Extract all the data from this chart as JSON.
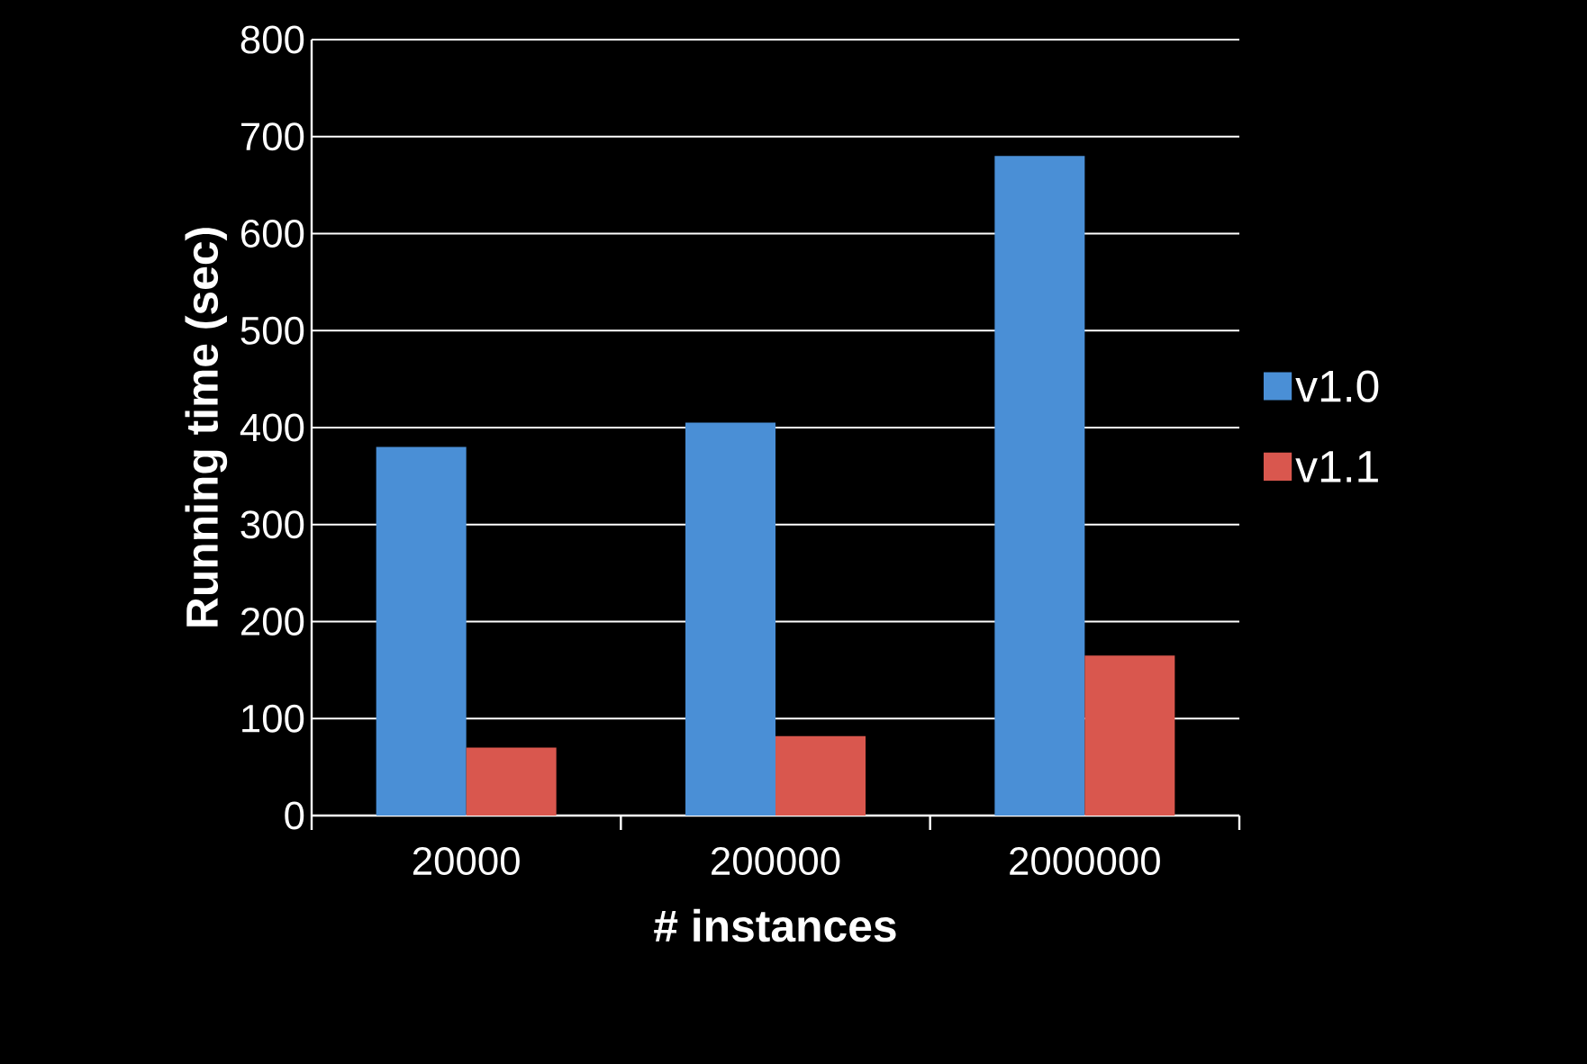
{
  "chart_data": {
    "type": "bar",
    "xlabel": "# instances",
    "ylabel": "Running time (sec)",
    "categories": [
      "20000",
      "200000",
      "2000000"
    ],
    "series": [
      {
        "name": "v1.0",
        "color": "#4a8fd6",
        "values": [
          380,
          405,
          680
        ]
      },
      {
        "name": "v1.1",
        "color": "#d9574e",
        "values": [
          70,
          82,
          165
        ]
      }
    ],
    "ylim": [
      0,
      800
    ],
    "yticks": [
      0,
      100,
      200,
      300,
      400,
      500,
      600,
      700,
      800
    ],
    "grid": "y",
    "legend": "right"
  }
}
